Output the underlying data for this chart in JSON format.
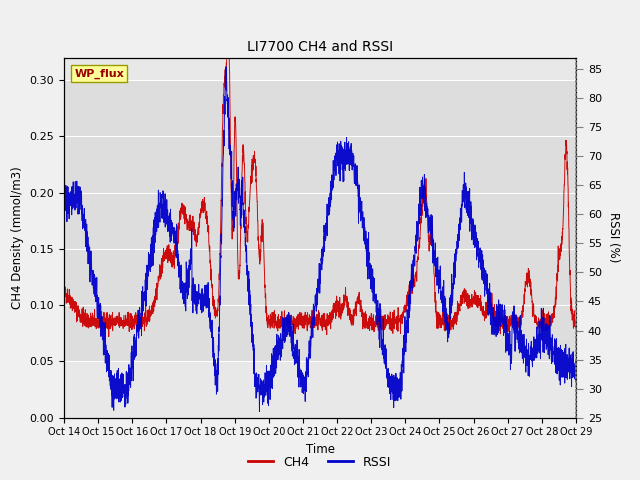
{
  "title": "LI7700 CH4 and RSSI",
  "xlabel": "Time",
  "ylabel_left": "CH4 Density (mmol/m3)",
  "ylabel_right": "RSSI (%)",
  "site_label": "WP_flux",
  "ch4_color": "#cc0000",
  "rssi_color": "#0000cc",
  "fig_facecolor": "#f0f0f0",
  "plot_bg_color": "#e8e8e8",
  "ylim_left": [
    0.0,
    0.32
  ],
  "ylim_right": [
    25,
    87
  ],
  "yticks_left": [
    0.0,
    0.05,
    0.1,
    0.15,
    0.2,
    0.25,
    0.3
  ],
  "yticks_right": [
    25,
    30,
    35,
    40,
    45,
    50,
    55,
    60,
    65,
    70,
    75,
    80,
    85
  ],
  "x_tick_labels": [
    "Oct 14",
    "Oct 15",
    "Oct 16",
    "Oct 17",
    "Oct 18",
    "Oct 19",
    "Oct 20",
    "Oct 21",
    "Oct 22",
    "Oct 23",
    "Oct 24",
    "Oct 25",
    "Oct 26",
    "Oct 27",
    "Oct 28",
    "Oct 29"
  ],
  "n_points": 3000,
  "seed": 42,
  "n_days": 16
}
